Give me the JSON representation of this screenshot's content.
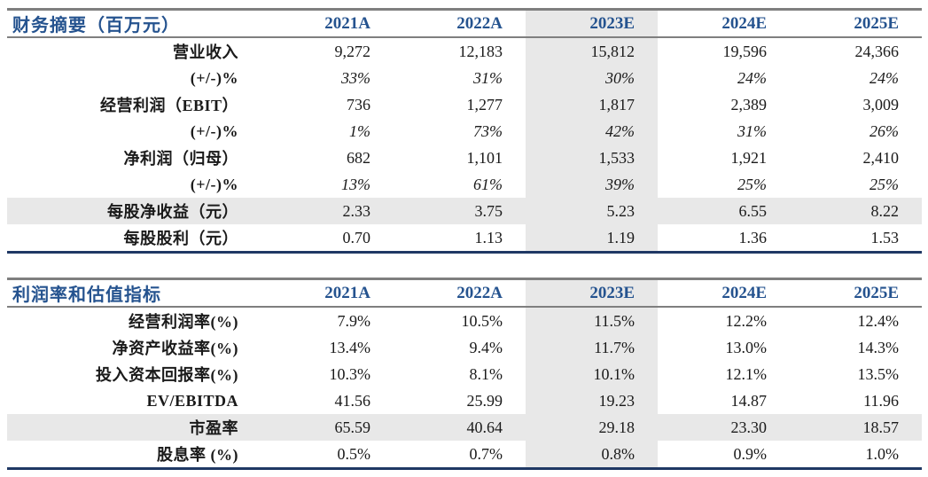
{
  "colors": {
    "header_text": "#25538F",
    "bottom_border_navy": "#1F3864",
    "rule_gray": "#7F7F7F",
    "highlight_bg": "#E8E8E8",
    "body_text": "#1A1A1A"
  },
  "highlight_column": "2023E",
  "highlight_column_index": 2,
  "tables": [
    {
      "title": "财务摘要（百万元）",
      "columns": [
        "2021A",
        "2022A",
        "2023E",
        "2024E",
        "2025E"
      ],
      "rows": [
        {
          "label": "营业收入",
          "values": [
            "9,272",
            "12,183",
            "15,812",
            "19,596",
            "24,366"
          ],
          "italic": false,
          "highlight": false
        },
        {
          "label": "(+/-)%",
          "values": [
            "33%",
            "31%",
            "30%",
            "24%",
            "24%"
          ],
          "italic": true,
          "highlight": false
        },
        {
          "label": "经营利润（EBIT）",
          "values": [
            "736",
            "1,277",
            "1,817",
            "2,389",
            "3,009"
          ],
          "italic": false,
          "highlight": false
        },
        {
          "label": "(+/-)%",
          "values": [
            "1%",
            "73%",
            "42%",
            "31%",
            "26%"
          ],
          "italic": true,
          "highlight": false
        },
        {
          "label": "净利润（归母）",
          "values": [
            "682",
            "1,101",
            "1,533",
            "1,921",
            "2,410"
          ],
          "italic": false,
          "highlight": false
        },
        {
          "label": "(+/-)%",
          "values": [
            "13%",
            "61%",
            "39%",
            "25%",
            "25%"
          ],
          "italic": true,
          "highlight": false
        },
        {
          "label": "每股净收益（元）",
          "values": [
            "2.33",
            "3.75",
            "5.23",
            "6.55",
            "8.22"
          ],
          "italic": false,
          "highlight": true
        },
        {
          "label": "每股股利（元）",
          "values": [
            "0.70",
            "1.13",
            "1.19",
            "1.36",
            "1.53"
          ],
          "italic": false,
          "highlight": false
        }
      ]
    },
    {
      "title": "利润率和估值指标",
      "columns": [
        "2021A",
        "2022A",
        "2023E",
        "2024E",
        "2025E"
      ],
      "rows": [
        {
          "label": "经营利润率(%)",
          "values": [
            "7.9%",
            "10.5%",
            "11.5%",
            "12.2%",
            "12.4%"
          ],
          "italic": false,
          "highlight": false
        },
        {
          "label": "净资产收益率(%)",
          "values": [
            "13.4%",
            "9.4%",
            "11.7%",
            "13.0%",
            "14.3%"
          ],
          "italic": false,
          "highlight": false
        },
        {
          "label": "投入资本回报率(%)",
          "values": [
            "10.3%",
            "8.1%",
            "10.1%",
            "12.1%",
            "13.5%"
          ],
          "italic": false,
          "highlight": false
        },
        {
          "label": "EV/EBITDA",
          "values": [
            "41.56",
            "25.99",
            "19.23",
            "14.87",
            "11.96"
          ],
          "italic": false,
          "highlight": false
        },
        {
          "label": "市盈率",
          "values": [
            "65.59",
            "40.64",
            "29.18",
            "23.30",
            "18.57"
          ],
          "italic": false,
          "highlight": true
        },
        {
          "label": "股息率 (%)",
          "values": [
            "0.5%",
            "0.7%",
            "0.8%",
            "0.9%",
            "1.0%"
          ],
          "italic": false,
          "highlight": false
        }
      ]
    }
  ],
  "layout": {
    "label_col_width": 287,
    "value_col_width": 149
  }
}
